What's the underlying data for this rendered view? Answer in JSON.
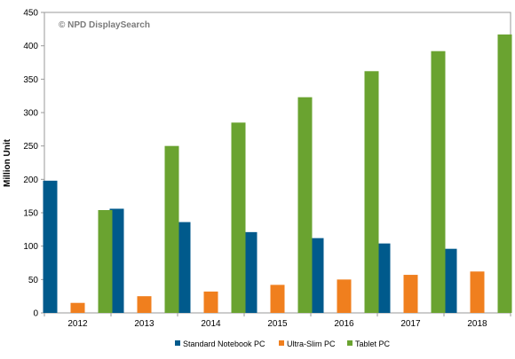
{
  "chart_data": {
    "type": "bar",
    "watermark": "© NPD DisplaySearch",
    "ylabel": "Million Unit",
    "xlabel": "",
    "ylim": [
      0,
      450
    ],
    "yticks": [
      0,
      50,
      100,
      150,
      200,
      250,
      300,
      350,
      400,
      450
    ],
    "grid": false,
    "legend_position": "bottom",
    "categories": [
      "2012",
      "2013",
      "2014",
      "2015",
      "2016",
      "2017",
      "2018"
    ],
    "series": [
      {
        "name": "Standard Notebook PC",
        "color": "#005a8c",
        "values": [
          198,
          156,
          136,
          121,
          112,
          104,
          96
        ]
      },
      {
        "name": "Ultra-Slim PC",
        "color": "#f07f1e",
        "values": [
          15,
          25,
          32,
          42,
          50,
          57,
          62
        ]
      },
      {
        "name": "Tablet PC",
        "color": "#6aa330",
        "values": [
          154,
          250,
          285,
          323,
          362,
          392,
          417
        ]
      }
    ]
  }
}
